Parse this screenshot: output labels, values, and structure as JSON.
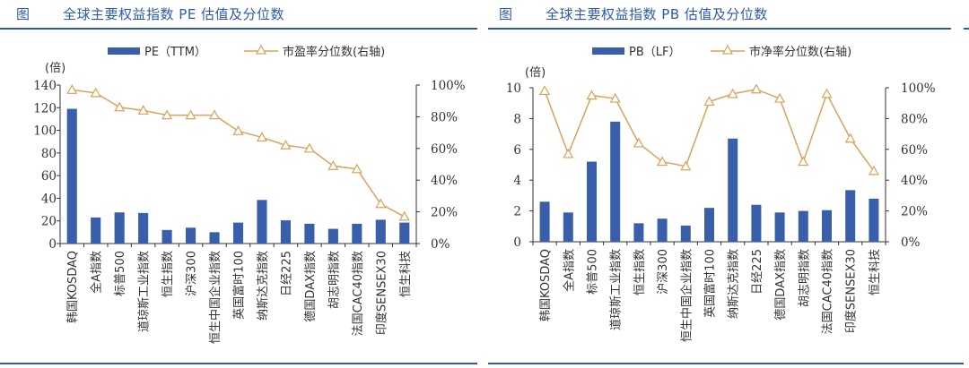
{
  "colors": {
    "title": "#2d5aa8",
    "bar": "#3a5faa",
    "line": "#d8a25a",
    "axis": "#333333"
  },
  "panels": [
    {
      "fig_label": "图",
      "title": "全球主要权益指数 PE 估值及分位数"
    },
    {
      "fig_label": "图",
      "title": "全球主要权益指数 PB 估值及分位数"
    }
  ],
  "chart_data": [
    {
      "type": "bar",
      "title": "全球主要权益指数 PE 估值及分位数",
      "ylabel": "(倍)",
      "ylim": [
        0,
        140
      ],
      "yticks": [
        "0",
        "20",
        "40",
        "60",
        "80",
        "100",
        "120",
        "140"
      ],
      "y2lim": [
        0,
        100
      ],
      "y2ticks": [
        "0%",
        "20%",
        "40%",
        "60%",
        "80%",
        "100%"
      ],
      "categories": [
        "韩国KOSDAQ",
        "全A指数",
        "标普500",
        "道琼斯工业指数",
        "恒生指数",
        "沪深300",
        "恒生中国企业指数",
        "英国富时100",
        "纳斯达克指数",
        "日经225",
        "德国DAX指数",
        "胡志明指数",
        "法国CAC40指数",
        "印度SENSEX30",
        "恒生科技"
      ],
      "series": [
        {
          "name": "PE（TTM）",
          "type": "bar",
          "axis": "left",
          "values": [
            119,
            23,
            27.5,
            27,
            12,
            14,
            10,
            18.5,
            38.5,
            20.5,
            17.5,
            13,
            17.5,
            21,
            18.5
          ]
        },
        {
          "name": "市盈率分位数(右轴)",
          "type": "line",
          "axis": "right",
          "marker": "triangle",
          "values": [
            0.97,
            0.95,
            0.86,
            0.84,
            0.81,
            0.81,
            0.81,
            0.71,
            0.67,
            0.62,
            0.6,
            0.49,
            0.47,
            0.25,
            0.17
          ]
        }
      ],
      "legend": "top",
      "grid": false
    },
    {
      "type": "bar",
      "title": "全球主要权益指数 PB 估值及分位数",
      "ylabel": "(倍)",
      "ylim": [
        0,
        10
      ],
      "yticks": [
        "0",
        "2",
        "4",
        "6",
        "8",
        "10"
      ],
      "y2lim": [
        0,
        100
      ],
      "y2ticks": [
        "0%",
        "20%",
        "40%",
        "60%",
        "80%",
        "100%"
      ],
      "categories": [
        "韩国KOSDAQ",
        "全A指数",
        "标普500",
        "道琼斯工业指数",
        "恒生指数",
        "沪深300",
        "恒生中国企业指数",
        "英国富时100",
        "纳斯达克指数",
        "日经225",
        "德国DAX指数",
        "胡志明指数",
        "法国CAC40指数",
        "印度SENSEX30",
        "恒生科技"
      ],
      "series": [
        {
          "name": "PB（LF）",
          "type": "bar",
          "axis": "left",
          "values": [
            2.6,
            1.9,
            5.2,
            7.8,
            1.2,
            1.5,
            1.05,
            2.2,
            6.7,
            2.4,
            1.9,
            2.0,
            2.05,
            3.35,
            2.8
          ]
        },
        {
          "name": "市净率分位数(右轴)",
          "type": "line",
          "axis": "right",
          "marker": "triangle",
          "values": [
            0.98,
            0.57,
            0.95,
            0.93,
            0.64,
            0.52,
            0.49,
            0.91,
            0.96,
            0.99,
            0.93,
            0.52,
            0.96,
            0.67,
            0.46
          ]
        }
      ],
      "legend": "top",
      "grid": false
    }
  ]
}
